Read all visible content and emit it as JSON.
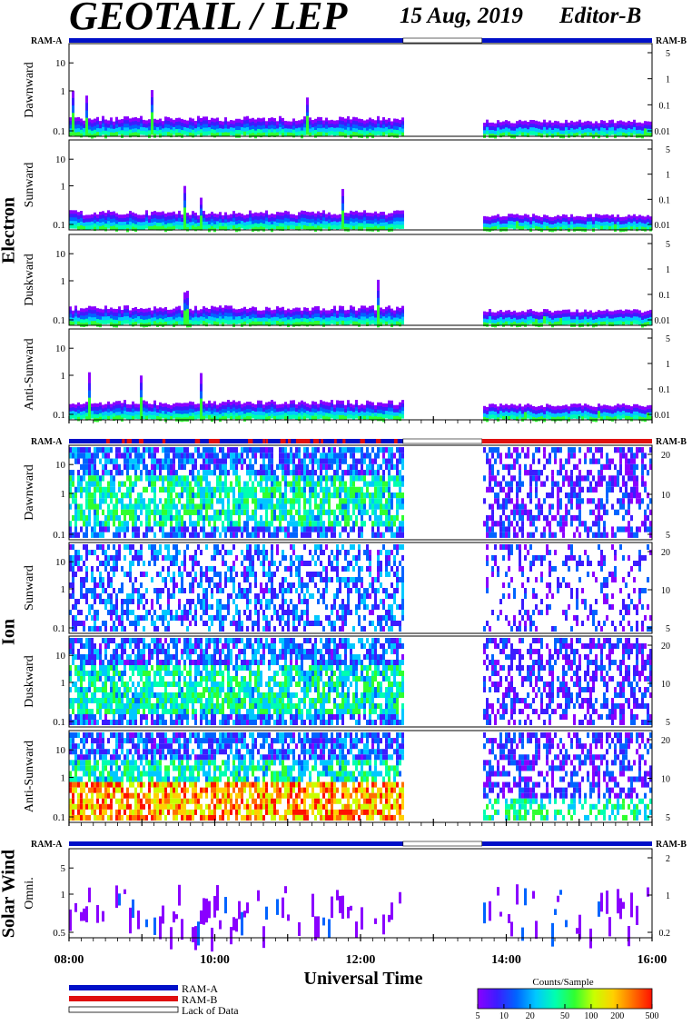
{
  "header": {
    "title": "GEOTAIL / LEP",
    "date": "15 Aug, 2019",
    "editor": "Editor-B"
  },
  "colors": {
    "ram_a": "#0010c8",
    "ram_b": "#e01010",
    "spectrogram_scale": [
      "#8a00ff",
      "#3c1cff",
      "#0064ff",
      "#00c8ff",
      "#00ffb0",
      "#30ff30",
      "#c8ff00",
      "#ffd000",
      "#ff7000",
      "#ff1000"
    ]
  },
  "sections": {
    "electron": "Electron",
    "ion": "Ion",
    "solar_wind": "Solar Wind"
  },
  "ram_labels": {
    "left": "RAM-A",
    "right": "RAM-B"
  },
  "legend": {
    "ram_a": "RAM-A",
    "ram_b": "RAM-B",
    "lack": "Lack of Data"
  },
  "colorbar": {
    "title": "Counts/Sample",
    "ticks": [
      "5",
      "10",
      "20",
      "50",
      "100",
      "200",
      "500"
    ]
  },
  "chart_data": {
    "type": "heatmap",
    "xlabel": "Universal Time",
    "x_ticks": [
      "08:00",
      "10:00",
      "12:00",
      "14:00",
      "16:00"
    ],
    "x_range": [
      "08:00",
      "16:00"
    ],
    "data_gap": [
      "12:35",
      "13:40"
    ],
    "panels": [
      {
        "species": "Electron",
        "label": "Dawnward",
        "left_ticks": [
          "10",
          "1",
          "0.1"
        ],
        "right_ticks": [
          "5",
          "1",
          "0.1",
          "0.01"
        ]
      },
      {
        "species": "Electron",
        "label": "Sunward",
        "left_ticks": [
          "10",
          "1",
          "0.1"
        ],
        "right_ticks": [
          "5",
          "1",
          "0.1",
          "0.01"
        ]
      },
      {
        "species": "Electron",
        "label": "Duskward",
        "left_ticks": [
          "10",
          "1",
          "0.1"
        ],
        "right_ticks": [
          "5",
          "1",
          "0.1",
          "0.01"
        ]
      },
      {
        "species": "Electron",
        "label": "Anti-Sunward",
        "left_ticks": [
          "10",
          "1",
          "0.1"
        ],
        "right_ticks": [
          "5",
          "1",
          "0.1",
          "0.01"
        ]
      },
      {
        "species": "Ion",
        "label": "Dawnward",
        "left_ticks": [
          "10",
          "1",
          "0.1"
        ],
        "right_ticks": [
          "20",
          "10",
          "5"
        ]
      },
      {
        "species": "Ion",
        "label": "Sunward",
        "left_ticks": [
          "10",
          "1",
          "0.1"
        ],
        "right_ticks": [
          "20",
          "10",
          "5"
        ]
      },
      {
        "species": "Ion",
        "label": "Duskward",
        "left_ticks": [
          "10",
          "1",
          "0.1"
        ],
        "right_ticks": [
          "20",
          "10",
          "5"
        ]
      },
      {
        "species": "Ion",
        "label": "Anti-Sunward",
        "left_ticks": [
          "10",
          "1",
          "0.1"
        ],
        "right_ticks": [
          "20",
          "10",
          "5"
        ]
      },
      {
        "species": "Solar Wind",
        "label": "Omni.",
        "left_ticks": [
          "5",
          "1",
          "0.5"
        ],
        "right_ticks": [
          "2",
          "1",
          "0.2"
        ]
      }
    ]
  }
}
